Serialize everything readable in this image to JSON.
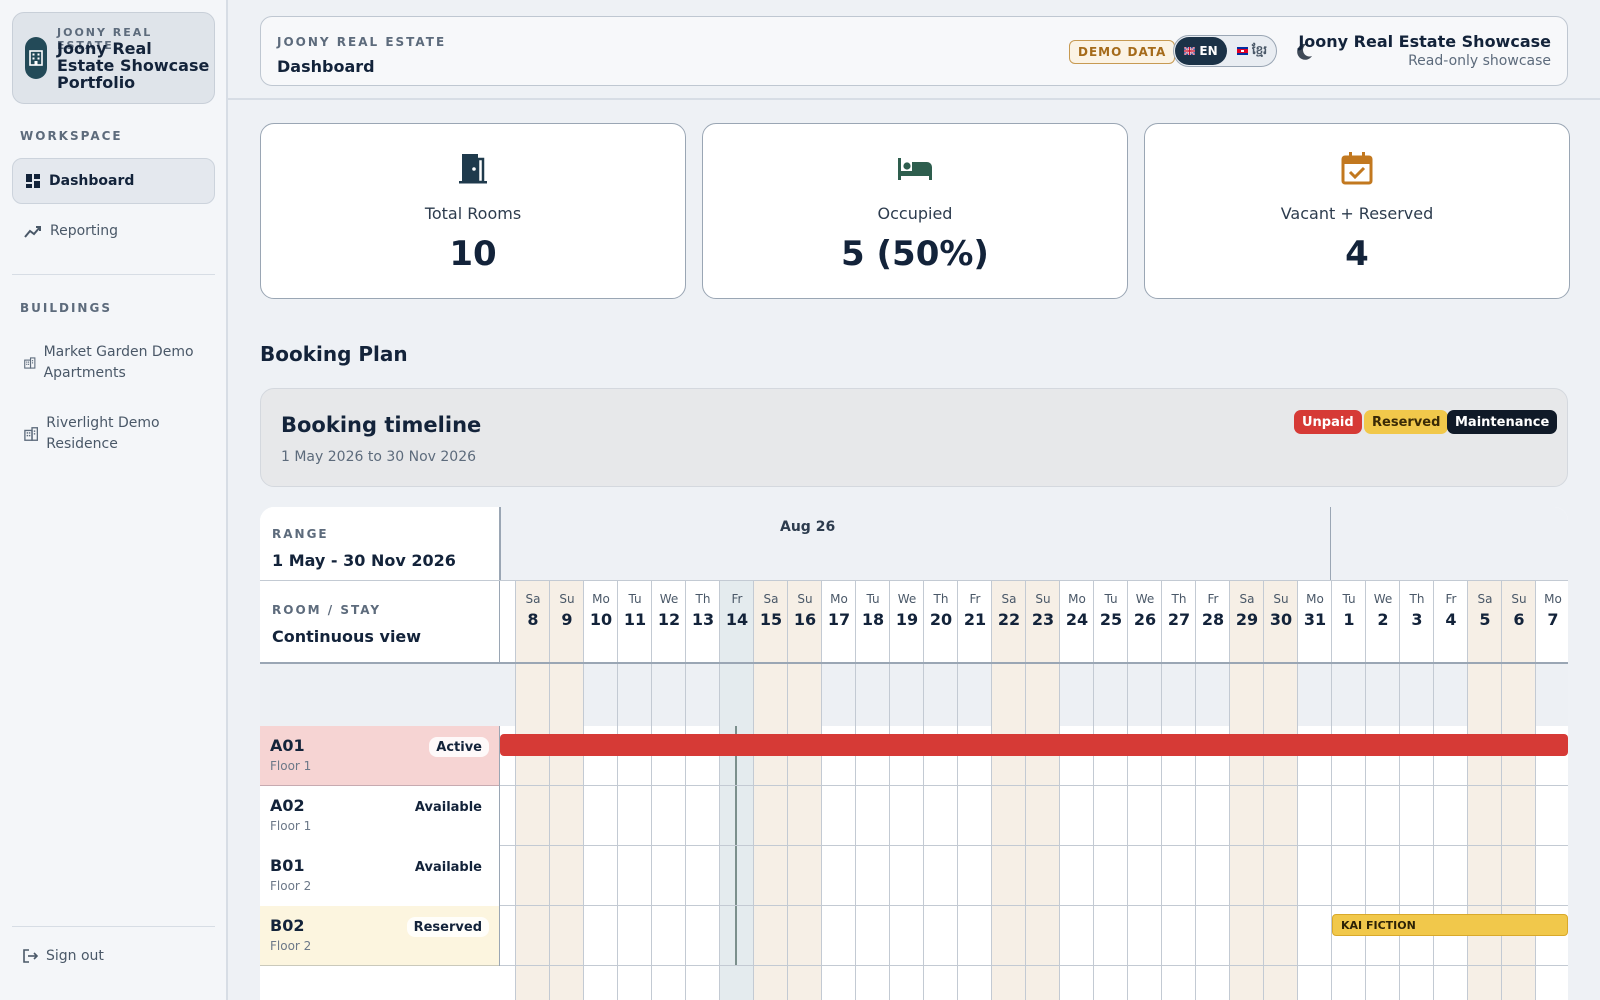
{
  "sidebar": {
    "brand_kicker": "JOONY REAL ESTATE",
    "brand_name": "Joony Real Estate Showcase Portfolio",
    "workspace_label": "WORKSPACE",
    "nav": [
      {
        "label": "Dashboard",
        "icon": "dashboard-icon",
        "active": true
      },
      {
        "label": "Reporting",
        "icon": "trend-icon",
        "active": false
      }
    ],
    "buildings_label": "BUILDINGS",
    "buildings": [
      {
        "label": "Market Garden Demo Apartments",
        "icon": "building-icon"
      },
      {
        "label": "Riverlight Demo Residence",
        "icon": "building-icon"
      }
    ],
    "signout_label": "Sign out"
  },
  "header": {
    "kicker": "JOONY REAL ESTATE",
    "title": "Dashboard",
    "demo_badge": "DEMO DATA",
    "lang_en": "EN",
    "lang_km": "ខ្មែរ",
    "org_name": "Joony Real Estate Showcase",
    "org_sub": "Read-only showcase"
  },
  "stats": [
    {
      "label": "Total Rooms",
      "value": "10",
      "icon": "door-icon",
      "color": "#1f3a4c"
    },
    {
      "label": "Occupied",
      "value": "5 (50%)",
      "icon": "bed-icon",
      "color": "#2e5e4e"
    },
    {
      "label": "Vacant + Reserved",
      "value": "4",
      "icon": "calendar-check-icon",
      "color": "#c2781f"
    }
  ],
  "booking": {
    "section_title": "Booking Plan",
    "timeline_title": "Booking timeline",
    "timeline_range": "1 May 2026 to 30 Nov 2026",
    "legend": {
      "unpaid": "Unpaid",
      "reserved": "Reserved",
      "maintenance": "Maintenance"
    },
    "range_label": "RANGE",
    "range_value": "1 May - 30 Nov 2026",
    "room_label": "ROOM / STAY",
    "room_value": "Continuous view",
    "month_label": "Aug 26",
    "days": [
      {
        "dow": "Sa",
        "num": "8",
        "weekend": true
      },
      {
        "dow": "Su",
        "num": "9",
        "weekend": true
      },
      {
        "dow": "Mo",
        "num": "10",
        "weekend": false
      },
      {
        "dow": "Tu",
        "num": "11",
        "weekend": false
      },
      {
        "dow": "We",
        "num": "12",
        "weekend": false
      },
      {
        "dow": "Th",
        "num": "13",
        "weekend": false
      },
      {
        "dow": "Fr",
        "num": "14",
        "weekend": false,
        "today": true
      },
      {
        "dow": "Sa",
        "num": "15",
        "weekend": true
      },
      {
        "dow": "Su",
        "num": "16",
        "weekend": true
      },
      {
        "dow": "Mo",
        "num": "17",
        "weekend": false
      },
      {
        "dow": "Tu",
        "num": "18",
        "weekend": false
      },
      {
        "dow": "We",
        "num": "19",
        "weekend": false
      },
      {
        "dow": "Th",
        "num": "20",
        "weekend": false
      },
      {
        "dow": "Fr",
        "num": "21",
        "weekend": false
      },
      {
        "dow": "Sa",
        "num": "22",
        "weekend": true
      },
      {
        "dow": "Su",
        "num": "23",
        "weekend": true
      },
      {
        "dow": "Mo",
        "num": "24",
        "weekend": false
      },
      {
        "dow": "Tu",
        "num": "25",
        "weekend": false
      },
      {
        "dow": "We",
        "num": "26",
        "weekend": false
      },
      {
        "dow": "Th",
        "num": "27",
        "weekend": false
      },
      {
        "dow": "Fr",
        "num": "28",
        "weekend": false
      },
      {
        "dow": "Sa",
        "num": "29",
        "weekend": true
      },
      {
        "dow": "Su",
        "num": "30",
        "weekend": true
      },
      {
        "dow": "Mo",
        "num": "31",
        "weekend": false
      },
      {
        "dow": "Tu",
        "num": "1",
        "weekend": false
      },
      {
        "dow": "We",
        "num": "2",
        "weekend": false
      },
      {
        "dow": "Th",
        "num": "3",
        "weekend": false
      },
      {
        "dow": "Fr",
        "num": "4",
        "weekend": false
      },
      {
        "dow": "Sa",
        "num": "5",
        "weekend": true
      },
      {
        "dow": "Su",
        "num": "6",
        "weekend": true
      },
      {
        "dow": "Mo",
        "num": "7",
        "weekend": false
      }
    ],
    "rooms": [
      {
        "code": "A01",
        "floor": "Floor 1",
        "status": "Active",
        "highlight": "unpaid"
      },
      {
        "code": "A02",
        "floor": "Floor 1",
        "status": "Available"
      },
      {
        "code": "B01",
        "floor": "Floor 2",
        "status": "Available"
      },
      {
        "code": "B02",
        "floor": "Floor 2",
        "status": "Reserved",
        "highlight": "reserved"
      }
    ],
    "stays": [
      {
        "room": "A01",
        "type": "unpaid",
        "label": ""
      },
      {
        "room": "B02",
        "type": "reserved",
        "label": "KAI FICTION"
      }
    ]
  }
}
